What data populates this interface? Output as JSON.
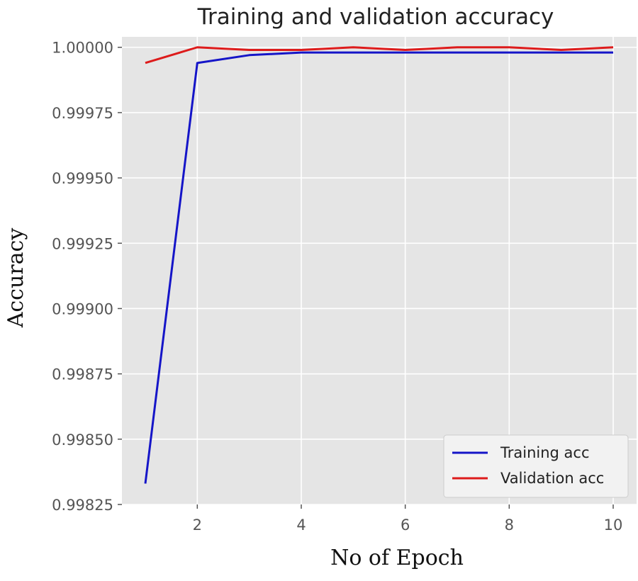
{
  "chart_data": {
    "type": "line",
    "title": "Training and validation accuracy",
    "xlabel": "No of Epoch",
    "ylabel": "Accuracy",
    "x": [
      1,
      2,
      3,
      4,
      5,
      6,
      7,
      8,
      9,
      10
    ],
    "xlim": [
      0.55,
      10.45
    ],
    "ylim": [
      0.99825,
      1.00004
    ],
    "xticks": [
      2,
      4,
      6,
      8,
      10
    ],
    "xtick_labels": [
      "2",
      "4",
      "6",
      "8",
      "10"
    ],
    "yticks": [
      0.99825,
      0.9985,
      0.99875,
      0.999,
      0.99925,
      0.9995,
      0.99975,
      1.0
    ],
    "ytick_labels": [
      "0.99825",
      "0.99850",
      "0.99875",
      "0.99900",
      "0.99925",
      "0.99950",
      "0.99975",
      "1.00000"
    ],
    "grid": true,
    "legend_position": "bottom-right",
    "series": [
      {
        "name": "Training acc",
        "color": "#1515c8",
        "values": [
          0.99833,
          0.99994,
          0.99997,
          0.99998,
          0.99998,
          0.99998,
          0.99998,
          0.99998,
          0.99998,
          0.99998
        ]
      },
      {
        "name": "Validation acc",
        "color": "#dd1b1b",
        "values": [
          0.99994,
          1.0,
          0.99999,
          0.99999,
          1.0,
          0.99999,
          1.0,
          1.0,
          0.99999,
          1.0
        ]
      }
    ],
    "background_color": "#e5e5e5",
    "grid_color": "#ffffff"
  }
}
